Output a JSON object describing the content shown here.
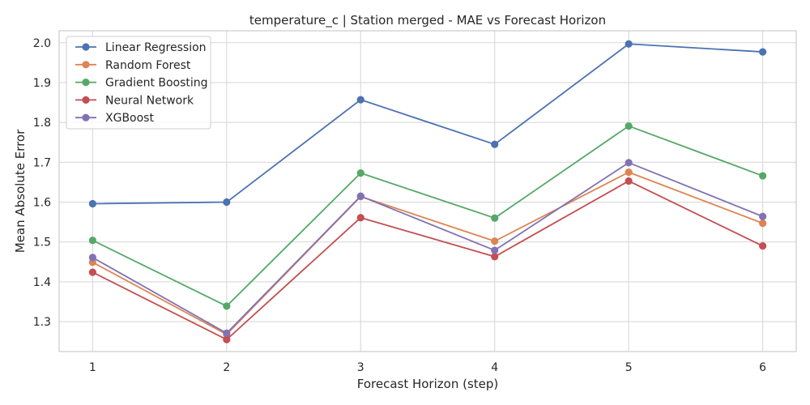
{
  "chart_data": {
    "type": "line",
    "title": "temperature_c | Station merged - MAE vs Forecast Horizon",
    "xlabel": "Forecast Horizon (step)",
    "ylabel": "Mean Absolute Error",
    "x": [
      1,
      2,
      3,
      4,
      5,
      6
    ],
    "xlim": [
      0.75,
      6.25
    ],
    "ylim": [
      1.225,
      2.03
    ],
    "yticks": [
      1.3,
      1.4,
      1.5,
      1.6,
      1.7,
      1.8,
      1.9,
      2.0
    ],
    "ytick_labels": [
      "1.3",
      "1.4",
      "1.5",
      "1.6",
      "1.7",
      "1.8",
      "1.9",
      "2.0"
    ],
    "xtick_labels": [
      "1",
      "2",
      "3",
      "4",
      "5",
      "6"
    ],
    "grid": true,
    "legend": "top-left",
    "series": [
      {
        "name": "Linear Regression",
        "color": "#4c72b0",
        "values": [
          1.596,
          1.6,
          1.857,
          1.745,
          1.997,
          1.977
        ]
      },
      {
        "name": "Random Forest",
        "color": "#dd8452",
        "values": [
          1.449,
          1.268,
          1.614,
          1.502,
          1.675,
          1.547
        ]
      },
      {
        "name": "Gradient Boosting",
        "color": "#55a868",
        "values": [
          1.504,
          1.339,
          1.673,
          1.56,
          1.791,
          1.666
        ]
      },
      {
        "name": "Neural Network",
        "color": "#c44e52",
        "values": [
          1.424,
          1.255,
          1.561,
          1.463,
          1.653,
          1.49
        ]
      },
      {
        "name": "XGBoost",
        "color": "#8172b3",
        "values": [
          1.461,
          1.271,
          1.615,
          1.479,
          1.699,
          1.564
        ]
      }
    ]
  }
}
